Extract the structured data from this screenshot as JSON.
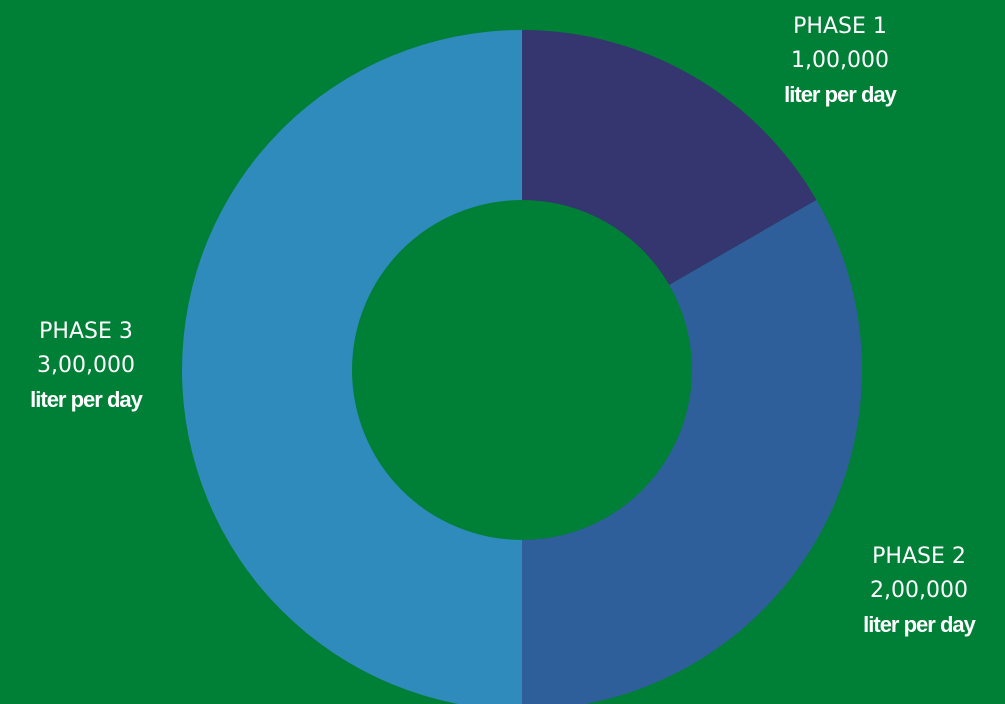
{
  "chart_data": {
    "type": "pie",
    "variant": "donut",
    "background_color": "#007f37",
    "slices": [
      {
        "label": "PHASE 1",
        "value_text": "1,00,000",
        "unit": "liter per day",
        "value": 100000,
        "color": "#35356f"
      },
      {
        "label": "PHASE 2",
        "value_text": "2,00,000",
        "unit": "liter per day",
        "value": 200000,
        "color": "#2e5f9a"
      },
      {
        "label": "PHASE 3",
        "value_text": "3,00,000",
        "unit": "liter per day",
        "value": 300000,
        "color": "#2e8bbb"
      }
    ]
  }
}
